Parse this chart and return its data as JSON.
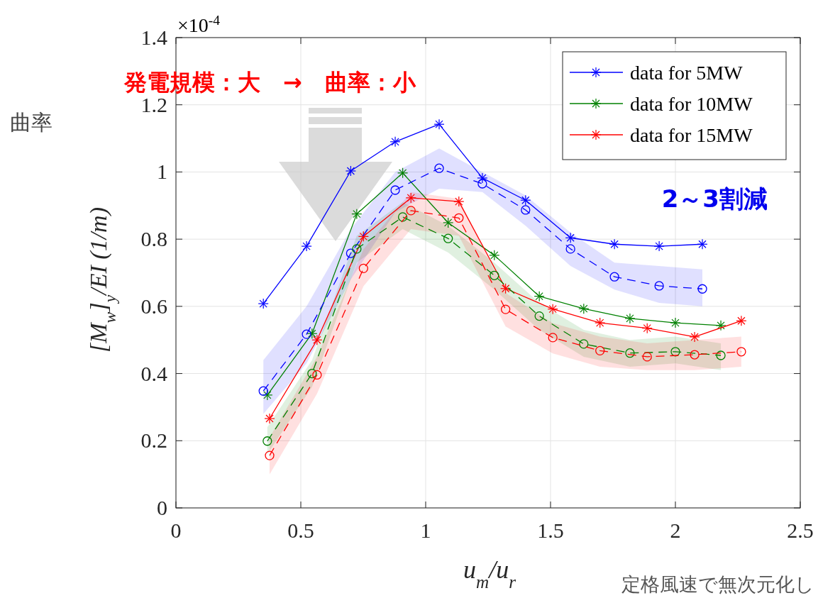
{
  "chart_data": {
    "type": "line",
    "xlabel": "u$_{m}$/u$_{r}$",
    "ylabel": "[M$_{w}$]$_{y}$/EI (1/m)",
    "xlim": [
      0,
      2.5
    ],
    "xticks": [
      0,
      0.5,
      1,
      1.5,
      2,
      2.5
    ],
    "ylim": [
      0,
      1.4
    ],
    "yticks": [
      0,
      0.2,
      0.4,
      0.6,
      0.8,
      1,
      1.2,
      1.4
    ],
    "grid": true,
    "legend": "top right",
    "annotations": [
      "×10$^{-4}$",
      "発電規模：大　→　曲率：小",
      "曲率",
      "2～3割減",
      "定格風速で無次元化し"
    ],
    "series": [
      {
        "name": "data for 5MW",
        "color": "#0000ff",
        "marker": "cross",
        "line_style": "solid",
        "x": [
          0.35,
          0.523,
          0.7,
          0.878,
          1.054,
          1.227,
          1.4,
          1.58,
          1.756,
          1.935,
          2.108
        ],
        "values": [
          0.608,
          0.779,
          1.003,
          1.09,
          1.142,
          0.982,
          0.916,
          0.804,
          0.785,
          0.779,
          0.785
        ]
      },
      {
        "name": "data for 10MW",
        "color": "#008000",
        "marker": "cross",
        "line_style": "solid",
        "x": [
          0.366,
          0.545,
          0.724,
          0.908,
          1.09,
          1.275,
          1.455,
          1.633,
          1.818,
          2.0,
          2.182
        ],
        "values": [
          0.336,
          0.519,
          0.875,
          0.997,
          0.849,
          0.752,
          0.63,
          0.593,
          0.564,
          0.551,
          0.543
        ]
      },
      {
        "name": "data for 15MW",
        "color": "#ff0000",
        "marker": "cross",
        "line_style": "solid",
        "x": [
          0.375,
          0.565,
          0.751,
          0.941,
          1.133,
          1.32,
          1.509,
          1.698,
          1.887,
          2.077,
          2.264
        ],
        "values": [
          0.266,
          0.5,
          0.808,
          0.923,
          0.912,
          0.653,
          0.592,
          0.551,
          0.535,
          0.509,
          0.557
        ]
      },
      {
        "color": "#0000ff",
        "marker": "circle",
        "line_style": "dashed",
        "x": [
          0.35,
          0.523,
          0.7,
          0.878,
          1.054,
          1.227,
          1.4,
          1.58,
          1.756,
          1.935,
          2.108
        ],
        "values": [
          0.348,
          0.517,
          0.758,
          0.946,
          1.011,
          0.965,
          0.887,
          0.771,
          0.688,
          0.661,
          0.652
        ],
        "lower": [
          0.28,
          0.43,
          0.68,
          0.88,
          0.95,
          0.94,
          0.84,
          0.72,
          0.65,
          0.61,
          0.6
        ],
        "upper": [
          0.44,
          0.6,
          0.83,
          1.0,
          1.07,
          1.0,
          0.93,
          0.82,
          0.73,
          0.72,
          0.71
        ]
      },
      {
        "color": "#008000",
        "marker": "circle",
        "line_style": "dashed",
        "x": [
          0.366,
          0.545,
          0.724,
          0.908,
          1.09,
          1.275,
          1.455,
          1.633,
          1.818,
          2.0,
          2.182
        ],
        "values": [
          0.199,
          0.4,
          0.771,
          0.866,
          0.802,
          0.692,
          0.571,
          0.488,
          0.461,
          0.465,
          0.454
        ],
        "lower": [
          0.16,
          0.36,
          0.73,
          0.83,
          0.76,
          0.65,
          0.53,
          0.45,
          0.42,
          0.43,
          0.41
        ],
        "upper": [
          0.24,
          0.44,
          0.81,
          0.91,
          0.84,
          0.73,
          0.61,
          0.53,
          0.5,
          0.51,
          0.49
        ]
      },
      {
        "color": "#ff0000",
        "marker": "circle",
        "line_style": "dashed",
        "x": [
          0.375,
          0.565,
          0.751,
          0.941,
          1.133,
          1.32,
          1.509,
          1.698,
          1.887,
          2.077,
          2.264
        ],
        "values": [
          0.156,
          0.396,
          0.713,
          0.885,
          0.863,
          0.591,
          0.507,
          0.468,
          0.45,
          0.456,
          0.465
        ],
        "lower": [
          0.1,
          0.34,
          0.66,
          0.83,
          0.81,
          0.54,
          0.46,
          0.42,
          0.41,
          0.41,
          0.42
        ],
        "upper": [
          0.21,
          0.45,
          0.77,
          0.94,
          0.92,
          0.64,
          0.55,
          0.51,
          0.49,
          0.5,
          0.51
        ]
      }
    ]
  }
}
